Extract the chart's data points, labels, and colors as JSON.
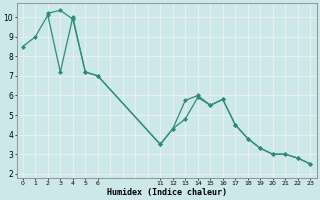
{
  "line1_x": [
    0,
    1,
    2,
    3,
    4,
    5,
    6,
    11,
    12,
    13,
    14,
    15,
    16,
    17,
    18,
    19,
    20,
    21,
    22,
    23
  ],
  "line1_y": [
    8.5,
    9.0,
    10.1,
    7.2,
    10.0,
    7.2,
    7.0,
    3.5,
    4.3,
    4.8,
    5.9,
    5.5,
    5.8,
    4.5,
    3.8,
    3.3,
    3.0,
    3.0,
    2.8,
    2.5
  ],
  "line2_x": [
    2,
    3,
    4,
    5,
    6,
    11,
    12,
    13,
    14,
    15,
    16,
    17,
    18,
    19,
    20,
    21,
    22,
    23
  ],
  "line2_y": [
    10.2,
    10.35,
    9.9,
    7.2,
    7.0,
    3.5,
    4.3,
    5.75,
    6.0,
    5.5,
    5.8,
    4.5,
    3.8,
    3.3,
    3.0,
    3.0,
    2.8,
    2.5
  ],
  "line_color": "#2e8b7a",
  "bg_color": "#cce8e8",
  "grid_color": "#f0f0f0",
  "xlabel": "Humidex (Indice chaleur)",
  "xlim": [
    -0.5,
    23.5
  ],
  "ylim": [
    1.8,
    10.7
  ],
  "xtick_positions": [
    0,
    1,
    2,
    3,
    4,
    5,
    6,
    11,
    12,
    13,
    14,
    15,
    16,
    17,
    18,
    19,
    20,
    21,
    22,
    23
  ],
  "xtick_labels": [
    "0",
    "1",
    "2",
    "3",
    "4",
    "5",
    "6",
    "11",
    "12",
    "13",
    "14",
    "15",
    "16",
    "17",
    "18",
    "19",
    "20",
    "21",
    "22",
    "23"
  ],
  "yticks": [
    2,
    3,
    4,
    5,
    6,
    7,
    8,
    9,
    10
  ]
}
